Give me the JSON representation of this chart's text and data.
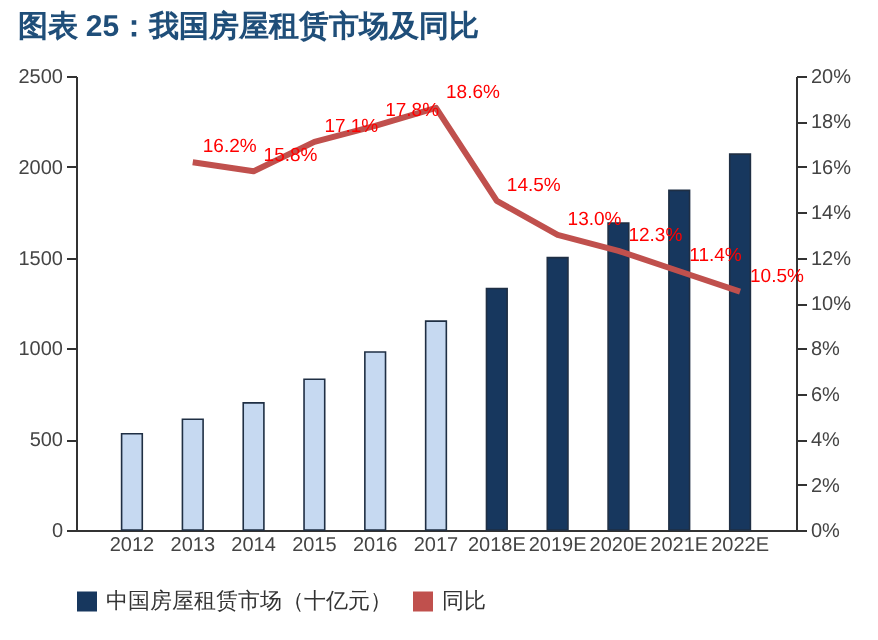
{
  "chart_data": {
    "type": "bar",
    "title": "图表 25：我国房屋租赁市场及同比",
    "categories": [
      "2012",
      "2013",
      "2014",
      "2015",
      "2016",
      "2017",
      "2018E",
      "2019E",
      "2020E",
      "2021E",
      "2022E"
    ],
    "series": [
      {
        "name": "中国房屋租赁市场（十亿元）",
        "color": "#17375e",
        "colors": [
          "#c6d9f1",
          "#c6d9f1",
          "#c6d9f1",
          "#c6d9f1",
          "#c6d9f1",
          "#c6d9f1",
          "#17375e",
          "#17375e",
          "#17375e",
          "#17375e",
          "#17375e"
        ],
        "values": [
          530,
          610,
          700,
          830,
          980,
          1150,
          1330,
          1500,
          1690,
          1870,
          2070
        ]
      },
      {
        "name": "同比",
        "type": "line",
        "axis": "y2",
        "color": "#c0504d",
        "values": [
          null,
          16.2,
          15.8,
          17.1,
          17.8,
          18.6,
          14.5,
          13.0,
          12.3,
          11.4,
          10.5
        ],
        "value_labels": [
          null,
          "16.2%",
          "15.8%",
          "17.1%",
          "17.8%",
          "18.6%",
          "14.5%",
          "13.0%",
          "12.3%",
          "11.4%",
          "10.5%"
        ]
      }
    ],
    "ylim": [
      0,
      2500
    ],
    "yticks": [
      0,
      500,
      1000,
      1500,
      2000,
      2500
    ],
    "y2lim": [
      0,
      20
    ],
    "y2ticks": [
      {
        "value": 0,
        "label": "0%"
      },
      {
        "value": 2,
        "label": "2%"
      },
      {
        "value": 4,
        "label": "4%"
      },
      {
        "value": 6,
        "label": "6%"
      },
      {
        "value": 8,
        "label": "8%"
      },
      {
        "value": 10,
        "label": "10%"
      },
      {
        "value": 12,
        "label": "12%"
      },
      {
        "value": 14,
        "label": "14%"
      },
      {
        "value": 16,
        "label": "16%"
      },
      {
        "value": 18,
        "label": "18%"
      },
      {
        "value": 20,
        "label": "20%"
      }
    ],
    "grid": false,
    "legend": "bottom"
  }
}
